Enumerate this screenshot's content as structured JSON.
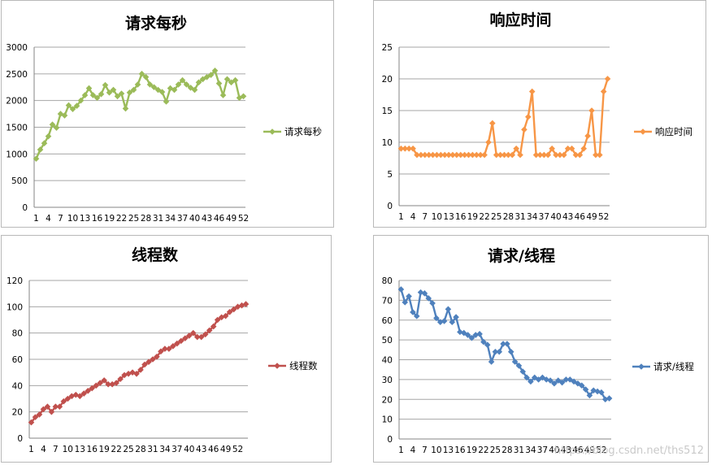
{
  "watermark": "https://blog.csdn.net/ths512",
  "chart_data": [
    {
      "id": "qps",
      "type": "line",
      "title": "请求每秒",
      "color": "#9bbb59",
      "ylim": [
        0,
        3000
      ],
      "yticks": [
        0,
        500,
        1000,
        1500,
        2000,
        2500,
        3000
      ],
      "xtick_labels": [
        "1",
        "4",
        "7",
        "10",
        "13",
        "16",
        "19",
        "22",
        "25",
        "28",
        "31",
        "34",
        "37",
        "40",
        "43",
        "46",
        "49",
        "52"
      ],
      "grid": true,
      "legend": "right",
      "series": [
        {
          "name": "请求每秒",
          "values": [
            910,
            1080,
            1200,
            1330,
            1550,
            1490,
            1750,
            1720,
            1910,
            1840,
            1900,
            2000,
            2100,
            2230,
            2100,
            2050,
            2120,
            2290,
            2150,
            2200,
            2080,
            2130,
            1850,
            2150,
            2200,
            2300,
            2500,
            2440,
            2300,
            2250,
            2200,
            2160,
            1980,
            2230,
            2200,
            2300,
            2380,
            2300,
            2240,
            2200,
            2340,
            2400,
            2440,
            2480,
            2560,
            2320,
            2100,
            2400,
            2340,
            2380,
            2050,
            2080
          ]
        }
      ]
    },
    {
      "id": "resp",
      "type": "line",
      "title": "响应时间",
      "color": "#f79646",
      "ylim": [
        0,
        25
      ],
      "yticks": [
        0,
        5,
        10,
        15,
        20,
        25
      ],
      "xtick_labels": [
        "1",
        "4",
        "7",
        "10",
        "13",
        "16",
        "19",
        "22",
        "25",
        "28",
        "31",
        "34",
        "37",
        "40",
        "43",
        "46",
        "49",
        "52"
      ],
      "grid": true,
      "legend": "right",
      "series": [
        {
          "name": "响应时间",
          "values": [
            9,
            9,
            9,
            9,
            8,
            8,
            8,
            8,
            8,
            8,
            8,
            8,
            8,
            8,
            8,
            8,
            8,
            8,
            8,
            8,
            8,
            8,
            10,
            13,
            8,
            8,
            8,
            8,
            8,
            9,
            8,
            12,
            14,
            18,
            8,
            8,
            8,
            8,
            9,
            8,
            8,
            8,
            9,
            9,
            8,
            8,
            9,
            11,
            15,
            8,
            8,
            18,
            20
          ]
        }
      ]
    },
    {
      "id": "threads",
      "type": "line",
      "title": "线程数",
      "color": "#c0504d",
      "ylim": [
        0,
        120
      ],
      "yticks": [
        0,
        20,
        40,
        60,
        80,
        100,
        120
      ],
      "xtick_labels": [
        "1",
        "4",
        "7",
        "10",
        "13",
        "16",
        "19",
        "22",
        "25",
        "28",
        "31",
        "34",
        "37",
        "40",
        "43",
        "46",
        "49",
        "52"
      ],
      "grid": true,
      "legend": "right",
      "series": [
        {
          "name": "线程数",
          "values": [
            12,
            16,
            18,
            22,
            24,
            20,
            24,
            24,
            28,
            30,
            32,
            33,
            32,
            34,
            36,
            38,
            40,
            42,
            44,
            41,
            41,
            42,
            45,
            48,
            49,
            50,
            49,
            52,
            56,
            58,
            60,
            62,
            66,
            68,
            68,
            70,
            72,
            74,
            76,
            78,
            80,
            77,
            77,
            79,
            82,
            85,
            90,
            92,
            93,
            96,
            98,
            100,
            101,
            102
          ]
        }
      ]
    },
    {
      "id": "rpt",
      "type": "line",
      "title": "请求/线程",
      "color": "#4f81bd",
      "ylim": [
        0,
        80
      ],
      "yticks": [
        0,
        10,
        20,
        30,
        40,
        50,
        60,
        70,
        80
      ],
      "xtick_labels": [
        "1",
        "4",
        "7",
        "10",
        "13",
        "16",
        "19",
        "22",
        "25",
        "28",
        "31",
        "34",
        "37",
        "40",
        "43",
        "46",
        "49",
        "52"
      ],
      "grid": true,
      "legend": "right",
      "series": [
        {
          "name": "请求/线程",
          "values": [
            75.5,
            69,
            72,
            64,
            62,
            74,
            73.5,
            71,
            68.5,
            61,
            59,
            59.5,
            65.5,
            59,
            61.5,
            54,
            53.5,
            52.5,
            51,
            52.5,
            53,
            49,
            47.5,
            39,
            44,
            44,
            48,
            48,
            44,
            39,
            37,
            34,
            31,
            29,
            31,
            30,
            31,
            30,
            29.5,
            28,
            29.5,
            28.5,
            30,
            30,
            29,
            28,
            27,
            25,
            22,
            24.5,
            24,
            23.5,
            20,
            20.5
          ]
        }
      ]
    }
  ]
}
